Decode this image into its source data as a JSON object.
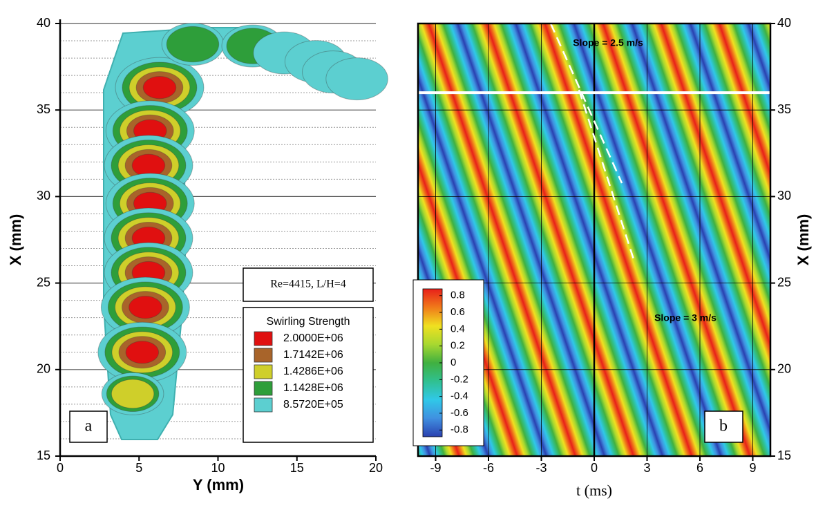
{
  "chart_data": [
    {
      "type": "contour",
      "xlabel": "Y (mm)",
      "ylabel": "X (mm)",
      "xlim": [
        0,
        20
      ],
      "xticks": [
        0,
        5,
        10,
        15,
        20
      ],
      "ylim": [
        15,
        40
      ],
      "yticks": [
        15,
        20,
        25,
        30,
        35,
        40
      ],
      "minor_yticks": [
        16,
        17,
        18,
        19,
        21,
        22,
        23,
        24,
        26,
        27,
        28,
        29,
        31,
        32,
        33,
        34,
        36,
        37,
        38,
        39
      ],
      "annotation": "Re=4415, L/H=4",
      "panel_label": "a",
      "legend_title": "Swirling Strength",
      "levels": [
        {
          "value": 2000000,
          "label": "2.0000E+06"
        },
        {
          "value": 1714200,
          "label": "1.7142E+06"
        },
        {
          "value": 1428600,
          "label": "1.4286E+06"
        },
        {
          "value": 1142800,
          "label": "1.1428E+06"
        },
        {
          "value": 857200,
          "label": "8.5720E+05"
        }
      ],
      "level_colors": [
        "#e01010",
        "#a8642a",
        "#cfcf2a",
        "#2e9e3a",
        "#5ccfd0"
      ],
      "vortices": {
        "Y": [
          6.3,
          5.7,
          5.6,
          5.7,
          5.6,
          5.6,
          5.4,
          5.2,
          4.6,
          8.4,
          12.2,
          14.2,
          16.2,
          17.3,
          18.8
        ],
        "X": [
          36.3,
          33.8,
          31.8,
          29.6,
          27.6,
          25.6,
          23.6,
          21.0,
          18.6,
          38.8,
          38.7,
          38.3,
          37.8,
          37.2,
          36.8
        ],
        "peak": [
          2000000,
          2000000,
          2000000,
          2000000,
          2000000,
          2000000,
          2000000,
          2000000,
          1428600,
          1142800,
          1142800,
          857200,
          857200,
          857200,
          857200
        ]
      }
    },
    {
      "type": "heatmap",
      "xlabel": "t (ms)",
      "ylabel": "X (mm)",
      "xlim": [
        -10,
        10
      ],
      "xticks": [
        -9,
        -6,
        -3,
        0,
        3,
        6,
        9
      ],
      "ylim": [
        15,
        40
      ],
      "yticks": [
        15,
        20,
        25,
        30,
        35,
        40
      ],
      "clim": [
        -0.88,
        0.88
      ],
      "cticks": [
        0.8,
        0.6,
        0.4,
        0.2,
        0,
        -0.2,
        -0.4,
        -0.6,
        -0.8
      ],
      "colorbar_colors": [
        "#e8201a",
        "#f07a1a",
        "#f0e020",
        "#a8d830",
        "#40b040",
        "#30c090",
        "#30c8e8",
        "#4090e0",
        "#2a40b0"
      ],
      "wave": {
        "period": 3.3,
        "slope": 3,
        "phase_t": -9.4
      },
      "reference_x": 36,
      "annotations": [
        "Slope = 2.5 m/s",
        "Slope = 3 m/s"
      ],
      "panel_label": "b"
    }
  ]
}
